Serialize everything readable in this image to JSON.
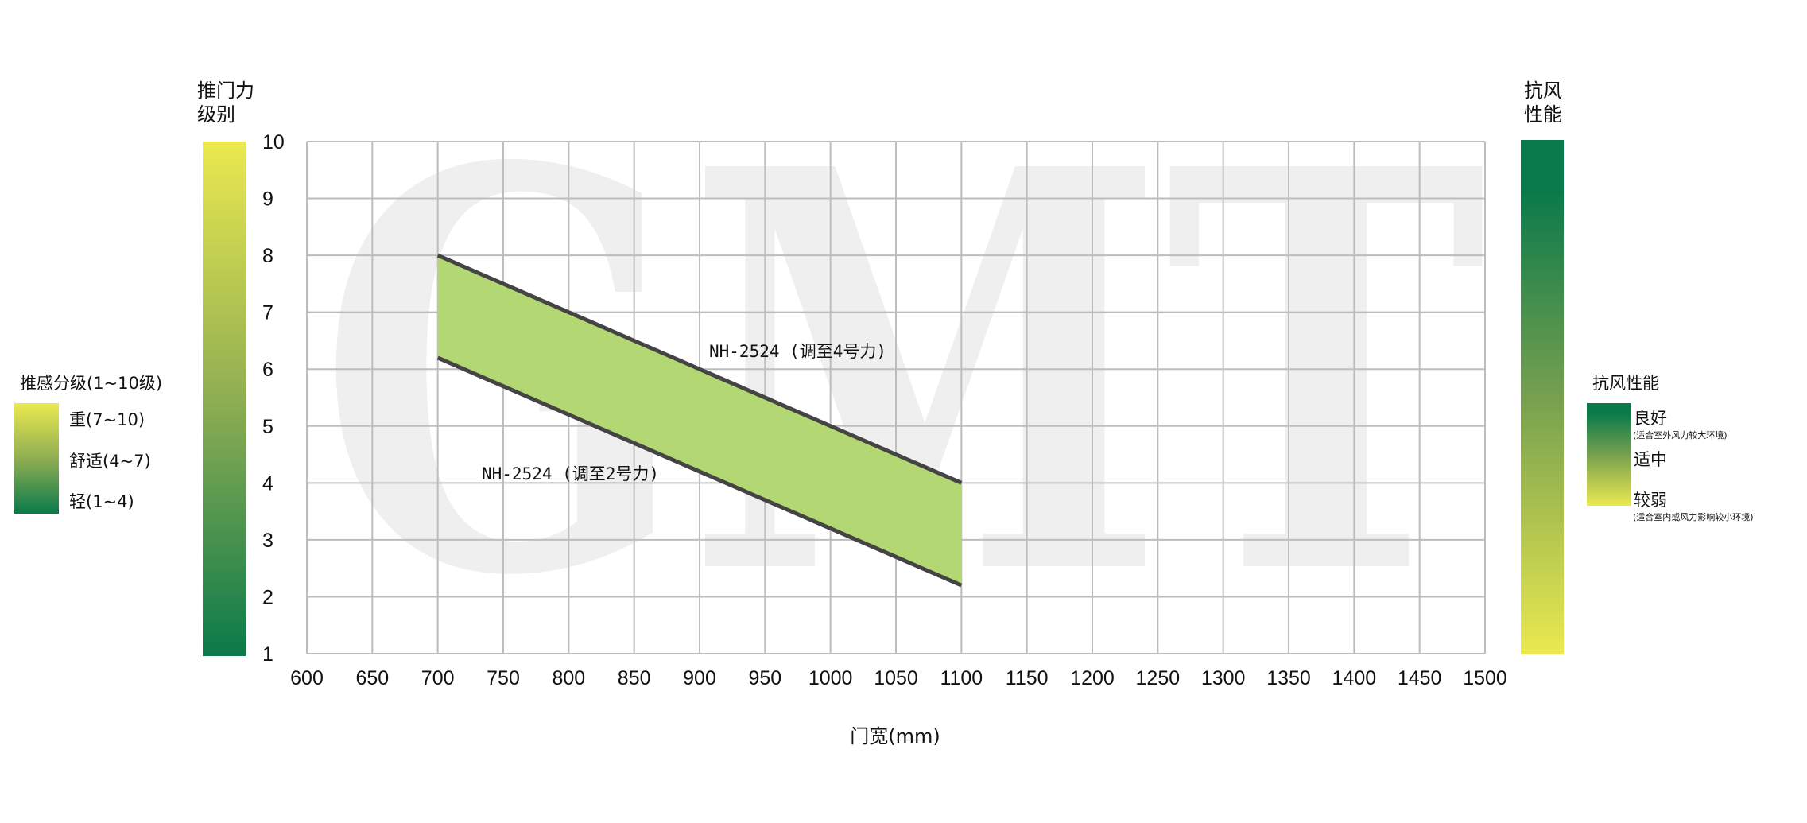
{
  "chart_data": {
    "type": "area",
    "title": "",
    "xlabel": "门宽(mm)",
    "ylabel": "推门力\n级别",
    "ylabel_lines": [
      "推门力",
      "级别"
    ],
    "xlim": [
      600,
      1500
    ],
    "ylim": [
      1,
      10
    ],
    "x_ticks": [
      600,
      650,
      700,
      750,
      800,
      850,
      900,
      950,
      1000,
      1050,
      1100,
      1150,
      1200,
      1250,
      1300,
      1350,
      1400,
      1450,
      1500
    ],
    "y_ticks": [
      1,
      2,
      3,
      4,
      5,
      6,
      7,
      8,
      9,
      10
    ],
    "grid": true,
    "series": [
      {
        "name": "NH-2524 (调至4号力)",
        "x": [
          700,
          1100
        ],
        "y": [
          8,
          4
        ]
      },
      {
        "name": "NH-2524 (调至2号力)",
        "x": [
          700,
          1100
        ],
        "y": [
          6.2,
          2.2
        ]
      }
    ],
    "band_fill_color": "#b3d773",
    "line_color": "#444444",
    "watermark": "GMT",
    "left_scale": {
      "colors": [
        "#ebe94f",
        "#0a7a4a"
      ]
    },
    "right_scale": {
      "title_lines": [
        "抗风",
        "性能"
      ],
      "colors": [
        "#0a7a4a",
        "#ebe94f"
      ]
    },
    "legend_push": {
      "title": "推感分级(1~10级)",
      "items": [
        "重(7~10)",
        "舒适(4~7)",
        "轻(1~4)"
      ],
      "placement": "left"
    },
    "legend_wind": {
      "title": "抗风性能",
      "items": [
        {
          "label": "良好",
          "note": "(适合室外风力较大环境)"
        },
        {
          "label": "适中",
          "note": ""
        },
        {
          "label": "较弱",
          "note": "(适合室内或风力影响较小环境)"
        }
      ],
      "placement": "right"
    }
  }
}
